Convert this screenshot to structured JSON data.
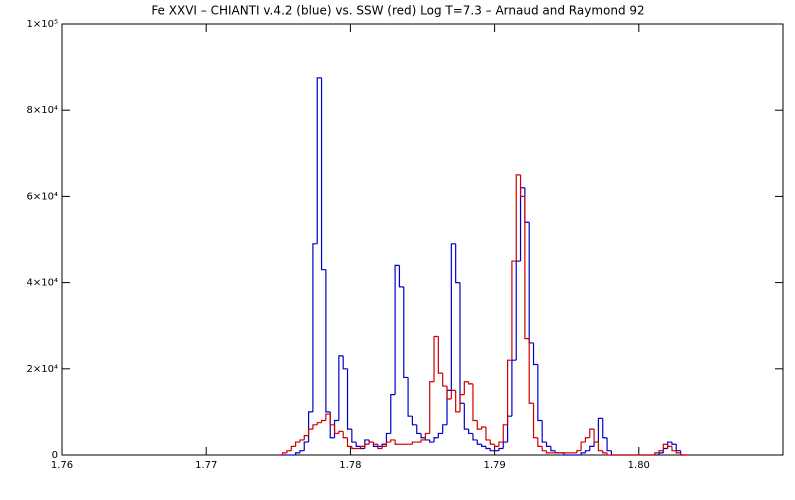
{
  "chart_data": {
    "type": "histogram",
    "title": "Fe XXVI – CHIANTI v.4.2 (blue) vs. SSW (red) Log T=7.3 – Arnaud and Raymond 92",
    "bins": [
      1.775,
      1.7753,
      1.7756,
      1.7759,
      1.7762,
      1.7765,
      1.7768,
      1.7771,
      1.7774,
      1.7777,
      1.778,
      1.7783,
      1.7786,
      1.7789,
      1.7792,
      1.7795,
      1.7798,
      1.7801,
      1.7804,
      1.7807,
      1.781,
      1.7813,
      1.7816,
      1.7819,
      1.7822,
      1.7825,
      1.7828,
      1.7831,
      1.7834,
      1.7837,
      1.784,
      1.7843,
      1.7846,
      1.7849,
      1.7852,
      1.7855,
      1.7858,
      1.7861,
      1.7864,
      1.7867,
      1.787,
      1.7873,
      1.7876,
      1.7879,
      1.7882,
      1.7885,
      1.7888,
      1.7891,
      1.7894,
      1.7897,
      1.79,
      1.7903,
      1.7906,
      1.7909,
      1.7912,
      1.7915,
      1.7918,
      1.7921,
      1.7924,
      1.7927,
      1.793,
      1.7933,
      1.7936,
      1.7939,
      1.7942,
      1.7945,
      1.7948,
      1.7951,
      1.7954,
      1.7957,
      1.796,
      1.7963,
      1.7966,
      1.7969,
      1.7972,
      1.7975,
      1.7978,
      1.7981,
      1.7984,
      1.7987,
      1.799,
      1.7993,
      1.7996,
      1.7999,
      1.8002,
      1.8005,
      1.8008,
      1.8011,
      1.8014,
      1.8017,
      1.802,
      1.8023,
      1.8026,
      1.8029,
      1.8032,
      1.8035
    ],
    "series": [
      {
        "color": "#0000cc",
        "values": [
          0,
          0,
          0,
          0,
          500,
          1000,
          3000,
          10000,
          49000,
          87500,
          43000,
          10000,
          4000,
          8000,
          23000,
          20000,
          6000,
          3000,
          2000,
          1500,
          3500,
          3000,
          2000,
          2000,
          2500,
          5000,
          14000,
          44000,
          39000,
          18000,
          9000,
          7000,
          5000,
          4000,
          3500,
          3000,
          4000,
          5000,
          7000,
          15000,
          49000,
          40000,
          12000,
          6000,
          5000,
          3500,
          2500,
          2000,
          1500,
          1000,
          1000,
          1500,
          3000,
          9000,
          22000,
          45000,
          62000,
          54000,
          26000,
          21000,
          8000,
          3000,
          2000,
          1000,
          500,
          500,
          0,
          0,
          0,
          0,
          500,
          1000,
          2000,
          3000,
          8500,
          4000,
          1000,
          0,
          0,
          0,
          0,
          0,
          0,
          0,
          0,
          0,
          0,
          0,
          500,
          1500,
          3000,
          2500,
          1000,
          0,
          0
        ]
      },
      {
        "color": "#cc0000",
        "values": [
          0,
          500,
          1000,
          2000,
          3000,
          3500,
          4500,
          6000,
          7000,
          7500,
          8000,
          9500,
          7000,
          5000,
          5500,
          4000,
          2000,
          1500,
          1500,
          2000,
          2500,
          3000,
          2500,
          1500,
          2000,
          3000,
          3500,
          2500,
          2500,
          2500,
          2500,
          3000,
          3000,
          3500,
          5000,
          17000,
          27500,
          19000,
          16000,
          13000,
          15000,
          10000,
          14000,
          17000,
          16500,
          8000,
          6000,
          6500,
          3500,
          2500,
          2000,
          3000,
          7000,
          22000,
          45000,
          65000,
          60000,
          27000,
          12000,
          4000,
          2000,
          1000,
          500,
          500,
          500,
          500,
          500,
          500,
          500,
          1000,
          3000,
          4000,
          6000,
          3000,
          1000,
          500,
          0,
          0,
          0,
          0,
          0,
          0,
          0,
          0,
          0,
          0,
          0,
          500,
          1000,
          2500,
          2000,
          1000,
          500,
          0,
          0
        ]
      }
    ],
    "xlim": [
      1.76,
      1.81
    ],
    "xticks": [
      1.76,
      1.77,
      1.78,
      1.79,
      {
        "value": 1.8,
        "label": "1.80"
      }
    ],
    "ylim": [
      0,
      100000
    ],
    "yticks": [
      0,
      {
        "value": 20000,
        "label": "2×10⁴"
      },
      {
        "value": 40000,
        "label": "4×10⁴"
      },
      {
        "value": 60000,
        "label": "6×10⁴"
      },
      {
        "value": 80000,
        "label": "8×10⁴"
      },
      {
        "value": 100000,
        "label": "1×10⁵"
      }
    ]
  }
}
